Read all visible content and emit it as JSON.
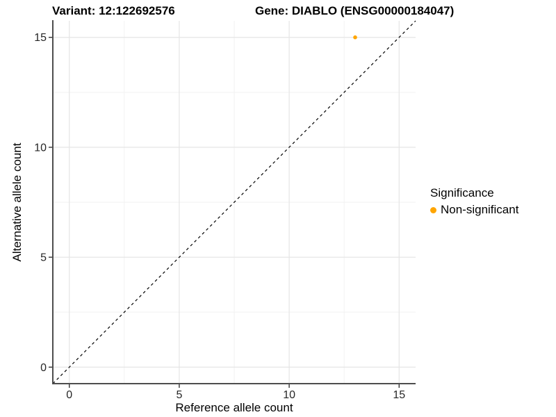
{
  "chart_data": {
    "type": "scatter",
    "title_left": "Variant: 12:122692576",
    "title_right": "Gene: DIABLO (ENSG00000184047)",
    "xlabel": "Reference allele count",
    "ylabel": "Alternative allele count",
    "xlim": [
      -0.75,
      15.75
    ],
    "ylim": [
      -0.75,
      15.75
    ],
    "x_ticks": [
      0,
      5,
      10,
      15
    ],
    "y_ticks": [
      0,
      5,
      10,
      15
    ],
    "x_minor_gridlines": [
      2.5,
      7.5,
      12.5
    ],
    "y_minor_gridlines": [
      2.5,
      7.5,
      12.5
    ],
    "points": [
      {
        "x": 13,
        "y": 15,
        "significance": "Non-significant"
      }
    ],
    "identity_line": {
      "style": "dashed",
      "from": -0.75,
      "to": 15.75
    },
    "legend": {
      "title": "Significance",
      "position": "right",
      "entries": [
        {
          "label": "Non-significant",
          "color": "#FFA500"
        }
      ]
    },
    "grid": true,
    "colors": {
      "point": "#FFA500",
      "grid_major": "#E5E5E5",
      "grid_minor": "#F2F2F2",
      "axis_line": "#4d4d4d",
      "tick_mark": "#333333",
      "tick_label": "#262626",
      "dashed_line": "#000000"
    }
  }
}
